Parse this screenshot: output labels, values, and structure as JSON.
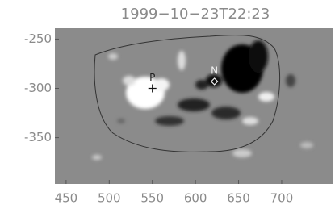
{
  "chart_data": {
    "type": "image",
    "title": "1999−10−23T22:23",
    "xlim": [
      437,
      759
    ],
    "xticks": [
      450,
      500,
      550,
      600,
      650,
      700
    ],
    "ylim": [
      -397,
      -239
    ],
    "yticks": [
      -250,
      -300,
      -350
    ],
    "markers": [
      {
        "label": "P",
        "x": 550,
        "y": -300
      },
      {
        "label": "N",
        "x": 622,
        "y": -293
      }
    ]
  }
}
